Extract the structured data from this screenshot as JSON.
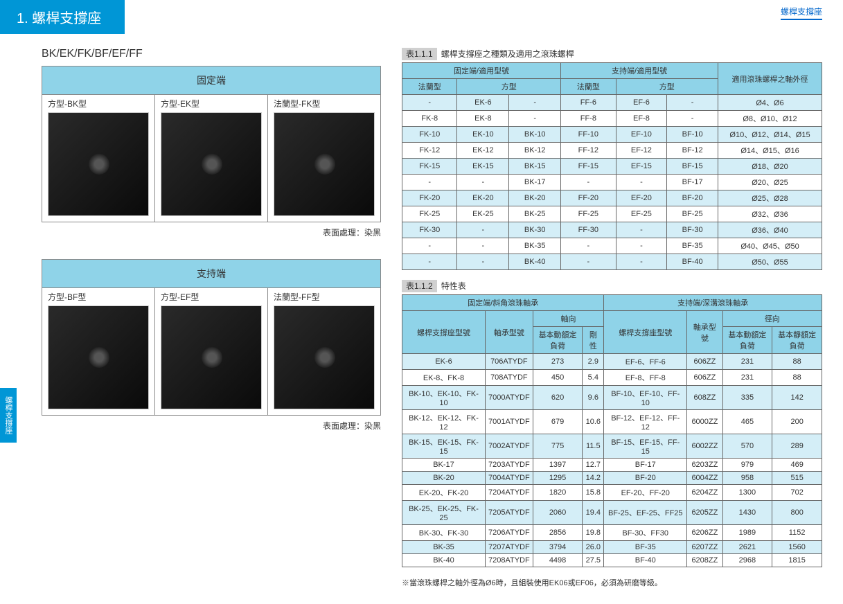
{
  "header": {
    "right_tab": "螺桿支撐座"
  },
  "title": "1. 螺桿支撐座",
  "side_tab": "螺桿支撐座",
  "section_label": "BK/EK/FK/BF/EF/FF",
  "fixed_grid": {
    "header": "固定端",
    "cells": [
      {
        "label": "方型-BK型"
      },
      {
        "label": "方型-EK型"
      },
      {
        "label": "法蘭型-FK型"
      }
    ],
    "surface": "表面處理：染黑"
  },
  "support_grid": {
    "header": "支持端",
    "cells": [
      {
        "label": "方型-BF型"
      },
      {
        "label": "方型-EF型"
      },
      {
        "label": "法蘭型-FF型"
      }
    ],
    "surface": "表面處理：染黑"
  },
  "table1": {
    "caption_num": "表1.1.1",
    "caption_text": "螺桿支撐座之種類及適用之滾珠螺桿",
    "headers": {
      "h1": "固定端/適用型號",
      "h2": "支持端/適用型號",
      "h3": "適用滾珠螺桿之軸外徑",
      "sub1": "法蘭型",
      "sub2": "方型",
      "sub3": "法蘭型",
      "sub4": "方型"
    },
    "rows": [
      [
        "-",
        "EK-6",
        "-",
        "FF-6",
        "EF-6",
        "-",
        "Ø4、Ø6"
      ],
      [
        "FK-8",
        "EK-8",
        "-",
        "FF-8",
        "EF-8",
        "-",
        "Ø8、Ø10、Ø12"
      ],
      [
        "FK-10",
        "EK-10",
        "BK-10",
        "FF-10",
        "EF-10",
        "BF-10",
        "Ø10、Ø12、Ø14、Ø15"
      ],
      [
        "FK-12",
        "EK-12",
        "BK-12",
        "FF-12",
        "EF-12",
        "BF-12",
        "Ø14、Ø15、Ø16"
      ],
      [
        "FK-15",
        "EK-15",
        "BK-15",
        "FF-15",
        "EF-15",
        "BF-15",
        "Ø18、Ø20"
      ],
      [
        "-",
        "-",
        "BK-17",
        "-",
        "-",
        "BF-17",
        "Ø20、Ø25"
      ],
      [
        "FK-20",
        "EK-20",
        "BK-20",
        "FF-20",
        "EF-20",
        "BF-20",
        "Ø25、Ø28"
      ],
      [
        "FK-25",
        "EK-25",
        "BK-25",
        "FF-25",
        "EF-25",
        "BF-25",
        "Ø32、Ø36"
      ],
      [
        "FK-30",
        "-",
        "BK-30",
        "FF-30",
        "-",
        "BF-30",
        "Ø36、Ø40"
      ],
      [
        "-",
        "-",
        "BK-35",
        "-",
        "-",
        "BF-35",
        "Ø40、Ø45、Ø50"
      ],
      [
        "-",
        "-",
        "BK-40",
        "-",
        "-",
        "BF-40",
        "Ø50、Ø55"
      ]
    ]
  },
  "table2": {
    "caption_num": "表1.1.2",
    "caption_text": "特性表",
    "headers": {
      "g1": "固定端/斜角滾珠軸承",
      "g2": "支持端/深溝滾珠軸承",
      "c1": "螺桿支撐座型號",
      "c2": "軸承型號",
      "c3": "軸向",
      "c4": "螺桿支撐座型號",
      "c5": "軸承型號",
      "c6": "徑向",
      "s1": "基本動額定負荷",
      "s2": "剛性",
      "s3": "基本動額定負荷",
      "s4": "基本靜額定負荷"
    },
    "rows": [
      [
        "EK-6",
        "706ATYDF",
        "273",
        "2.9",
        "EF-6、FF-6",
        "606ZZ",
        "231",
        "88"
      ],
      [
        "EK-8、FK-8",
        "708ATYDF",
        "450",
        "5.4",
        "EF-8、FF-8",
        "606ZZ",
        "231",
        "88"
      ],
      [
        "BK-10、EK-10、FK-10",
        "7000ATYDF",
        "620",
        "9.6",
        "BF-10、EF-10、FF-10",
        "608ZZ",
        "335",
        "142"
      ],
      [
        "BK-12、EK-12、FK-12",
        "7001ATYDF",
        "679",
        "10.6",
        "BF-12、EF-12、FF-12",
        "6000ZZ",
        "465",
        "200"
      ],
      [
        "BK-15、EK-15、FK-15",
        "7002ATYDF",
        "775",
        "11.5",
        "BF-15、EF-15、FF-15",
        "6002ZZ",
        "570",
        "289"
      ],
      [
        "BK-17",
        "7203ATYDF",
        "1397",
        "12.7",
        "BF-17",
        "6203ZZ",
        "979",
        "469"
      ],
      [
        "BK-20",
        "7004ATYDF",
        "1295",
        "14.2",
        "BF-20",
        "6004ZZ",
        "958",
        "515"
      ],
      [
        "EK-20、FK-20",
        "7204ATYDF",
        "1820",
        "15.8",
        "EF-20、FF-20",
        "6204ZZ",
        "1300",
        "702"
      ],
      [
        "BK-25、EK-25、FK-25",
        "7205ATYDF",
        "2060",
        "19.4",
        "BF-25、EF-25、FF25",
        "6205ZZ",
        "1430",
        "800"
      ],
      [
        "BK-30、FK-30",
        "7206ATYDF",
        "2856",
        "19.8",
        "BF-30、FF30",
        "6206ZZ",
        "1989",
        "1152"
      ],
      [
        "BK-35",
        "7207ATYDF",
        "3794",
        "26.0",
        "BF-35",
        "6207ZZ",
        "2621",
        "1560"
      ],
      [
        "BK-40",
        "7208ATYDF",
        "4498",
        "27.5",
        "BF-40",
        "6208ZZ",
        "2968",
        "1815"
      ]
    ]
  },
  "footnote": "※當滾珠螺桿之軸外徑為Ø6時，且組裝使用EK06或EF06，必須為研磨等級。"
}
